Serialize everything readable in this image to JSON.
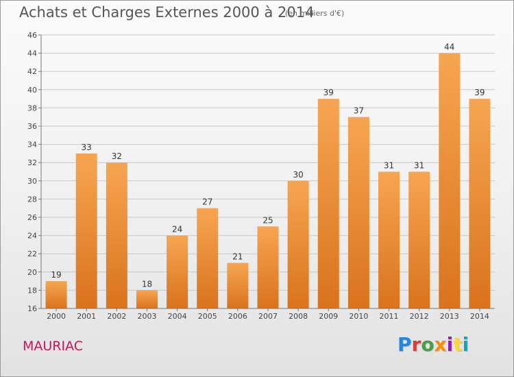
{
  "header": {
    "title": "Achats et Charges Externes 2000 à 2014",
    "unit": "(en milliers d'€)"
  },
  "footer": {
    "commune": "MAURIAC",
    "logo_text": "Proxiti",
    "logo_colors": [
      "#1e88e5",
      "#e53935",
      "#43a047",
      "#fb8c00",
      "#8e24aa",
      "#fdd835",
      "#00acc1"
    ]
  },
  "colors": {
    "bar_top": "#f7a552",
    "bar_bottom": "#d9731c",
    "grid": "#c8c8c8",
    "axis_text": "#444444",
    "commune_text": "#c2185b"
  },
  "chart_data": {
    "type": "bar",
    "title": "Achats et Charges Externes 2000 à 2014",
    "subtitle": "(en milliers d'€)",
    "xlabel": "",
    "ylabel": "",
    "categories": [
      "2000",
      "2001",
      "2002",
      "2003",
      "2004",
      "2005",
      "2006",
      "2007",
      "2008",
      "2009",
      "2010",
      "2011",
      "2012",
      "2013",
      "2014"
    ],
    "values": [
      19,
      33,
      32,
      18,
      24,
      27,
      21,
      25,
      30,
      39,
      37,
      31,
      31,
      44,
      39
    ],
    "ylim": [
      16,
      46
    ],
    "yticks": [
      16,
      18,
      20,
      22,
      24,
      26,
      28,
      30,
      32,
      34,
      36,
      38,
      40,
      42,
      44,
      46
    ],
    "grid": true,
    "data_labels": true
  }
}
